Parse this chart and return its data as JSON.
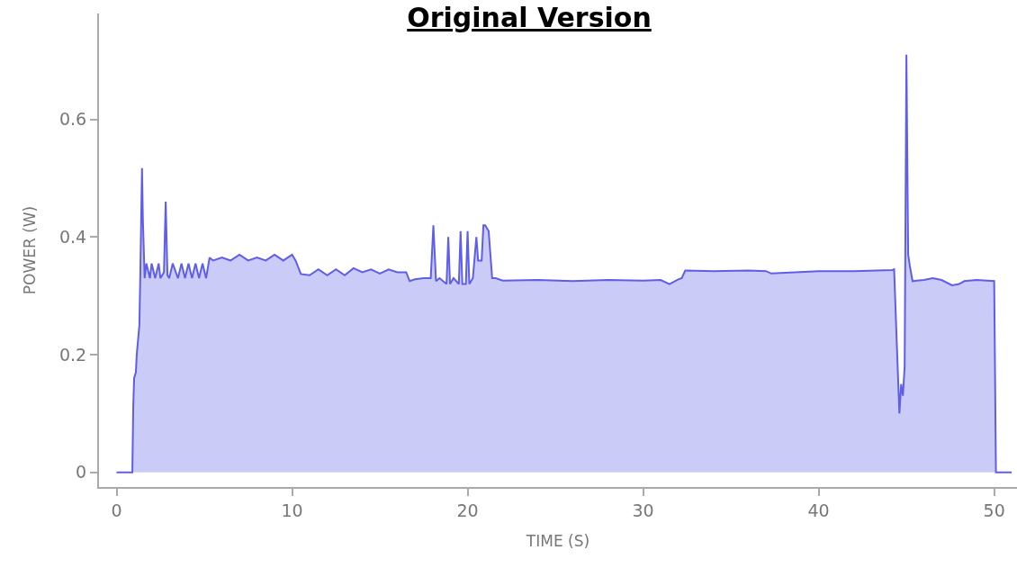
{
  "chart_data": {
    "type": "area",
    "title": "Original Version",
    "xlabel": "TIME (S)",
    "ylabel": "POWER (W)",
    "xlim": [
      -1,
      51.3
    ],
    "ylim": [
      -0.025,
      0.78
    ],
    "xticks": [
      0,
      10,
      20,
      30,
      40,
      50
    ],
    "yticks": [
      0,
      0.2,
      0.4,
      0.6
    ],
    "grid": false,
    "legend": false,
    "series": [
      {
        "color": "#5e5ee8",
        "x": [
          0,
          0.9,
          0.95,
          1.0,
          1.1,
          1.15,
          1.3,
          1.35,
          1.45,
          1.5,
          1.6,
          1.7,
          1.9,
          2.0,
          2.2,
          2.4,
          2.5,
          2.7,
          2.8,
          2.9,
          3.0,
          3.2,
          3.5,
          3.7,
          3.9,
          4.1,
          4.3,
          4.5,
          4.7,
          4.9,
          5.1,
          5.3,
          5.5,
          6.0,
          6.5,
          7.0,
          7.5,
          8.0,
          8.5,
          9.0,
          9.5,
          10.0,
          10.2,
          10.5,
          11.0,
          11.5,
          12.0,
          12.5,
          13.0,
          13.5,
          14.0,
          14.5,
          15.0,
          15.5,
          16.0,
          16.5,
          16.7,
          17.0,
          17.5,
          17.9,
          18.05,
          18.2,
          18.4,
          18.8,
          18.9,
          19.0,
          19.2,
          19.5,
          19.6,
          19.7,
          19.9,
          20.0,
          20.1,
          20.3,
          20.5,
          20.6,
          20.8,
          20.9,
          21.0,
          21.2,
          21.4,
          21.6,
          22.0,
          24.0,
          26.0,
          28.0,
          30.0,
          31.0,
          31.5,
          32.0,
          32.2,
          32.4,
          34.0,
          36.0,
          37.0,
          37.3,
          40.0,
          42.0,
          44.2,
          44.3,
          44.5,
          44.6,
          44.7,
          44.8,
          44.9,
          45.0,
          45.1,
          45.2,
          45.35,
          46.0,
          46.5,
          47.0,
          47.6,
          48.0,
          48.3,
          49.0,
          50.0,
          50.1,
          51.0
        ],
        "values": [
          0,
          0,
          0.11,
          0.16,
          0.17,
          0.2,
          0.25,
          0.33,
          0.517,
          0.43,
          0.33,
          0.355,
          0.33,
          0.355,
          0.33,
          0.355,
          0.33,
          0.34,
          0.46,
          0.335,
          0.33,
          0.355,
          0.33,
          0.355,
          0.33,
          0.355,
          0.33,
          0.355,
          0.33,
          0.355,
          0.33,
          0.365,
          0.36,
          0.365,
          0.36,
          0.37,
          0.36,
          0.365,
          0.36,
          0.37,
          0.36,
          0.37,
          0.36,
          0.337,
          0.335,
          0.345,
          0.335,
          0.345,
          0.335,
          0.347,
          0.34,
          0.345,
          0.338,
          0.345,
          0.34,
          0.34,
          0.325,
          0.328,
          0.33,
          0.33,
          0.42,
          0.325,
          0.33,
          0.32,
          0.4,
          0.32,
          0.33,
          0.32,
          0.41,
          0.32,
          0.32,
          0.41,
          0.32,
          0.33,
          0.4,
          0.36,
          0.36,
          0.42,
          0.42,
          0.41,
          0.33,
          0.33,
          0.326,
          0.327,
          0.325,
          0.327,
          0.326,
          0.327,
          0.32,
          0.328,
          0.33,
          0.343,
          0.342,
          0.343,
          0.342,
          0.338,
          0.342,
          0.342,
          0.344,
          0.345,
          0.18,
          0.1,
          0.15,
          0.13,
          0.18,
          0.71,
          0.37,
          0.35,
          0.325,
          0.327,
          0.33,
          0.327,
          0.318,
          0.32,
          0.325,
          0.327,
          0.325,
          0,
          0
        ]
      }
    ]
  }
}
